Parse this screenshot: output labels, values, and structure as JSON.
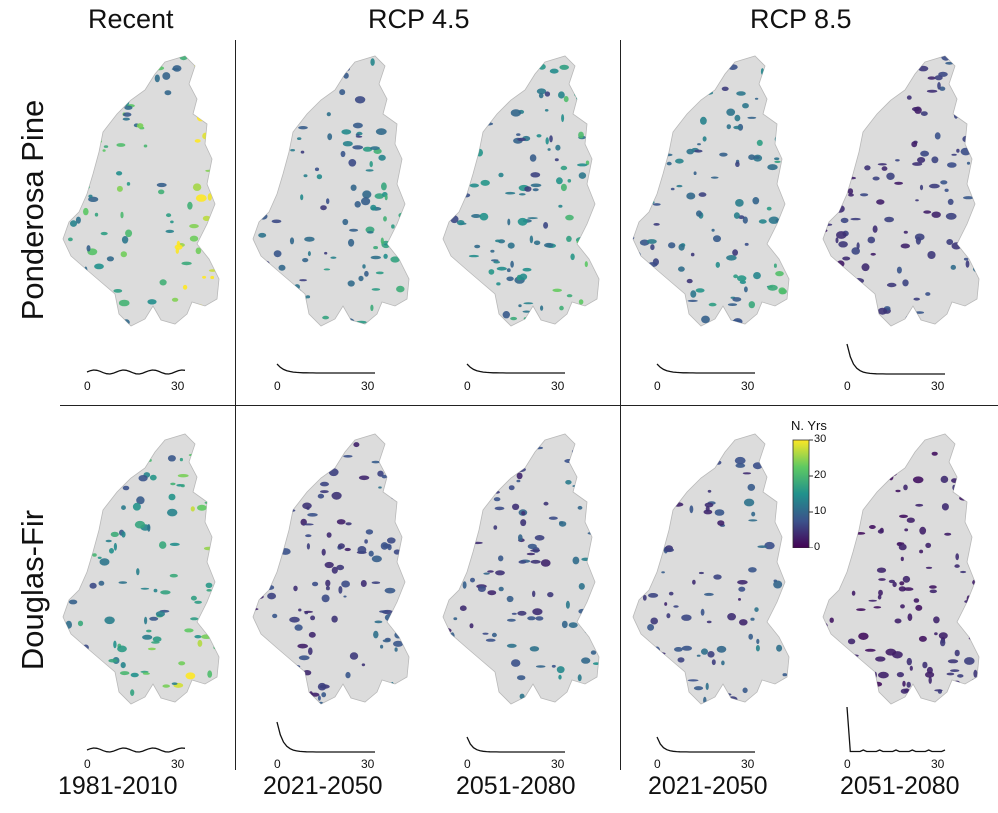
{
  "headers": {
    "recent": "Recent",
    "rcp45": "RCP 4.5",
    "rcp85": "RCP 8.5"
  },
  "rows": {
    "ponderosa": "Ponderosa Pine",
    "douglas": "Douglas-Fir"
  },
  "periods": [
    "1981-2010",
    "2021-2050",
    "2051-2080",
    "2021-2050",
    "2051-2080"
  ],
  "colorbar": {
    "title": "N. Yrs",
    "ticks": [
      "30",
      "20",
      "10",
      "0"
    ],
    "range": [
      0,
      30
    ],
    "colors": [
      "#440154",
      "#3b528b",
      "#21918c",
      "#5ec962",
      "#fde725"
    ]
  },
  "no_data_color": "#dcdcdc",
  "histogram_axis": {
    "min_label": "0",
    "max_label": "30"
  },
  "panels": [
    {
      "row": "ponderosa",
      "period": "1981-2010",
      "scenario": "Recent",
      "level": 0.55,
      "curve": "flat"
    },
    {
      "row": "ponderosa",
      "period": "2021-2050",
      "scenario": "RCP 4.5",
      "level": 0.32,
      "curve": "small-peak"
    },
    {
      "row": "ponderosa",
      "period": "2051-2080",
      "scenario": "RCP 4.5",
      "level": 0.35,
      "curve": "small-peak"
    },
    {
      "row": "ponderosa",
      "period": "2021-2050",
      "scenario": "RCP 8.5",
      "level": 0.3,
      "curve": "small-peak"
    },
    {
      "row": "ponderosa",
      "period": "2051-2080",
      "scenario": "RCP 8.5",
      "level": 0.15,
      "curve": "tall-peak"
    },
    {
      "row": "douglas",
      "period": "1981-2010",
      "scenario": "Recent",
      "level": 0.45,
      "curve": "flat"
    },
    {
      "row": "douglas",
      "period": "2021-2050",
      "scenario": "RCP 4.5",
      "level": 0.18,
      "curve": "tall-peak"
    },
    {
      "row": "douglas",
      "period": "2051-2080",
      "scenario": "RCP 4.5",
      "level": 0.22,
      "curve": "medium-peak"
    },
    {
      "row": "douglas",
      "period": "2021-2050",
      "scenario": "RCP 8.5",
      "level": 0.2,
      "curve": "medium-peak"
    },
    {
      "row": "douglas",
      "period": "2051-2080",
      "scenario": "RCP 8.5",
      "level": 0.08,
      "curve": "spike"
    }
  ]
}
